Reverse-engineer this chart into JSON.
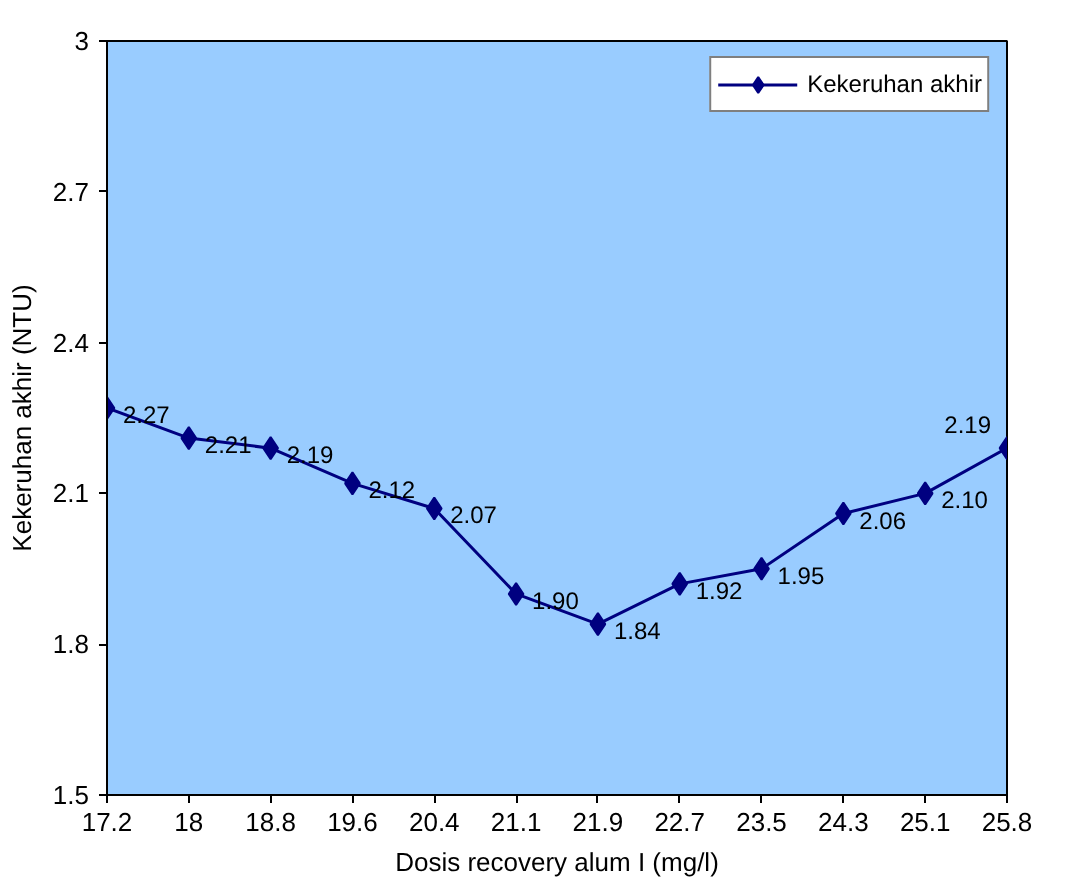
{
  "chart_data": {
    "type": "line",
    "xlabel": "Dosis recovery alum I (mg/l)",
    "ylabel": "Kekeruhan akhir (NTU)",
    "categories": [
      "17.2",
      "18",
      "18.8",
      "19.6",
      "20.4",
      "21.1",
      "21.9",
      "22.7",
      "23.5",
      "24.3",
      "25.1",
      "25.8"
    ],
    "series": [
      {
        "name": "Kekeruhan akhir",
        "color": "#000080",
        "values": [
          2.27,
          2.21,
          2.19,
          2.12,
          2.07,
          1.9,
          1.84,
          1.92,
          1.95,
          2.06,
          2.1,
          2.19
        ],
        "value_labels": [
          "2.27",
          "2.21",
          "2.19",
          "2.12",
          "2.07",
          "1.90",
          "1.84",
          "1.92",
          "1.95",
          "2.06",
          "2.10",
          "2.19"
        ]
      }
    ],
    "ylim": [
      1.5,
      3
    ],
    "yticks": [
      1.5,
      1.8,
      2.1,
      2.4,
      2.7,
      3
    ],
    "grid": false,
    "legend": "top right",
    "marker": "diamond",
    "line_style": "solid"
  }
}
